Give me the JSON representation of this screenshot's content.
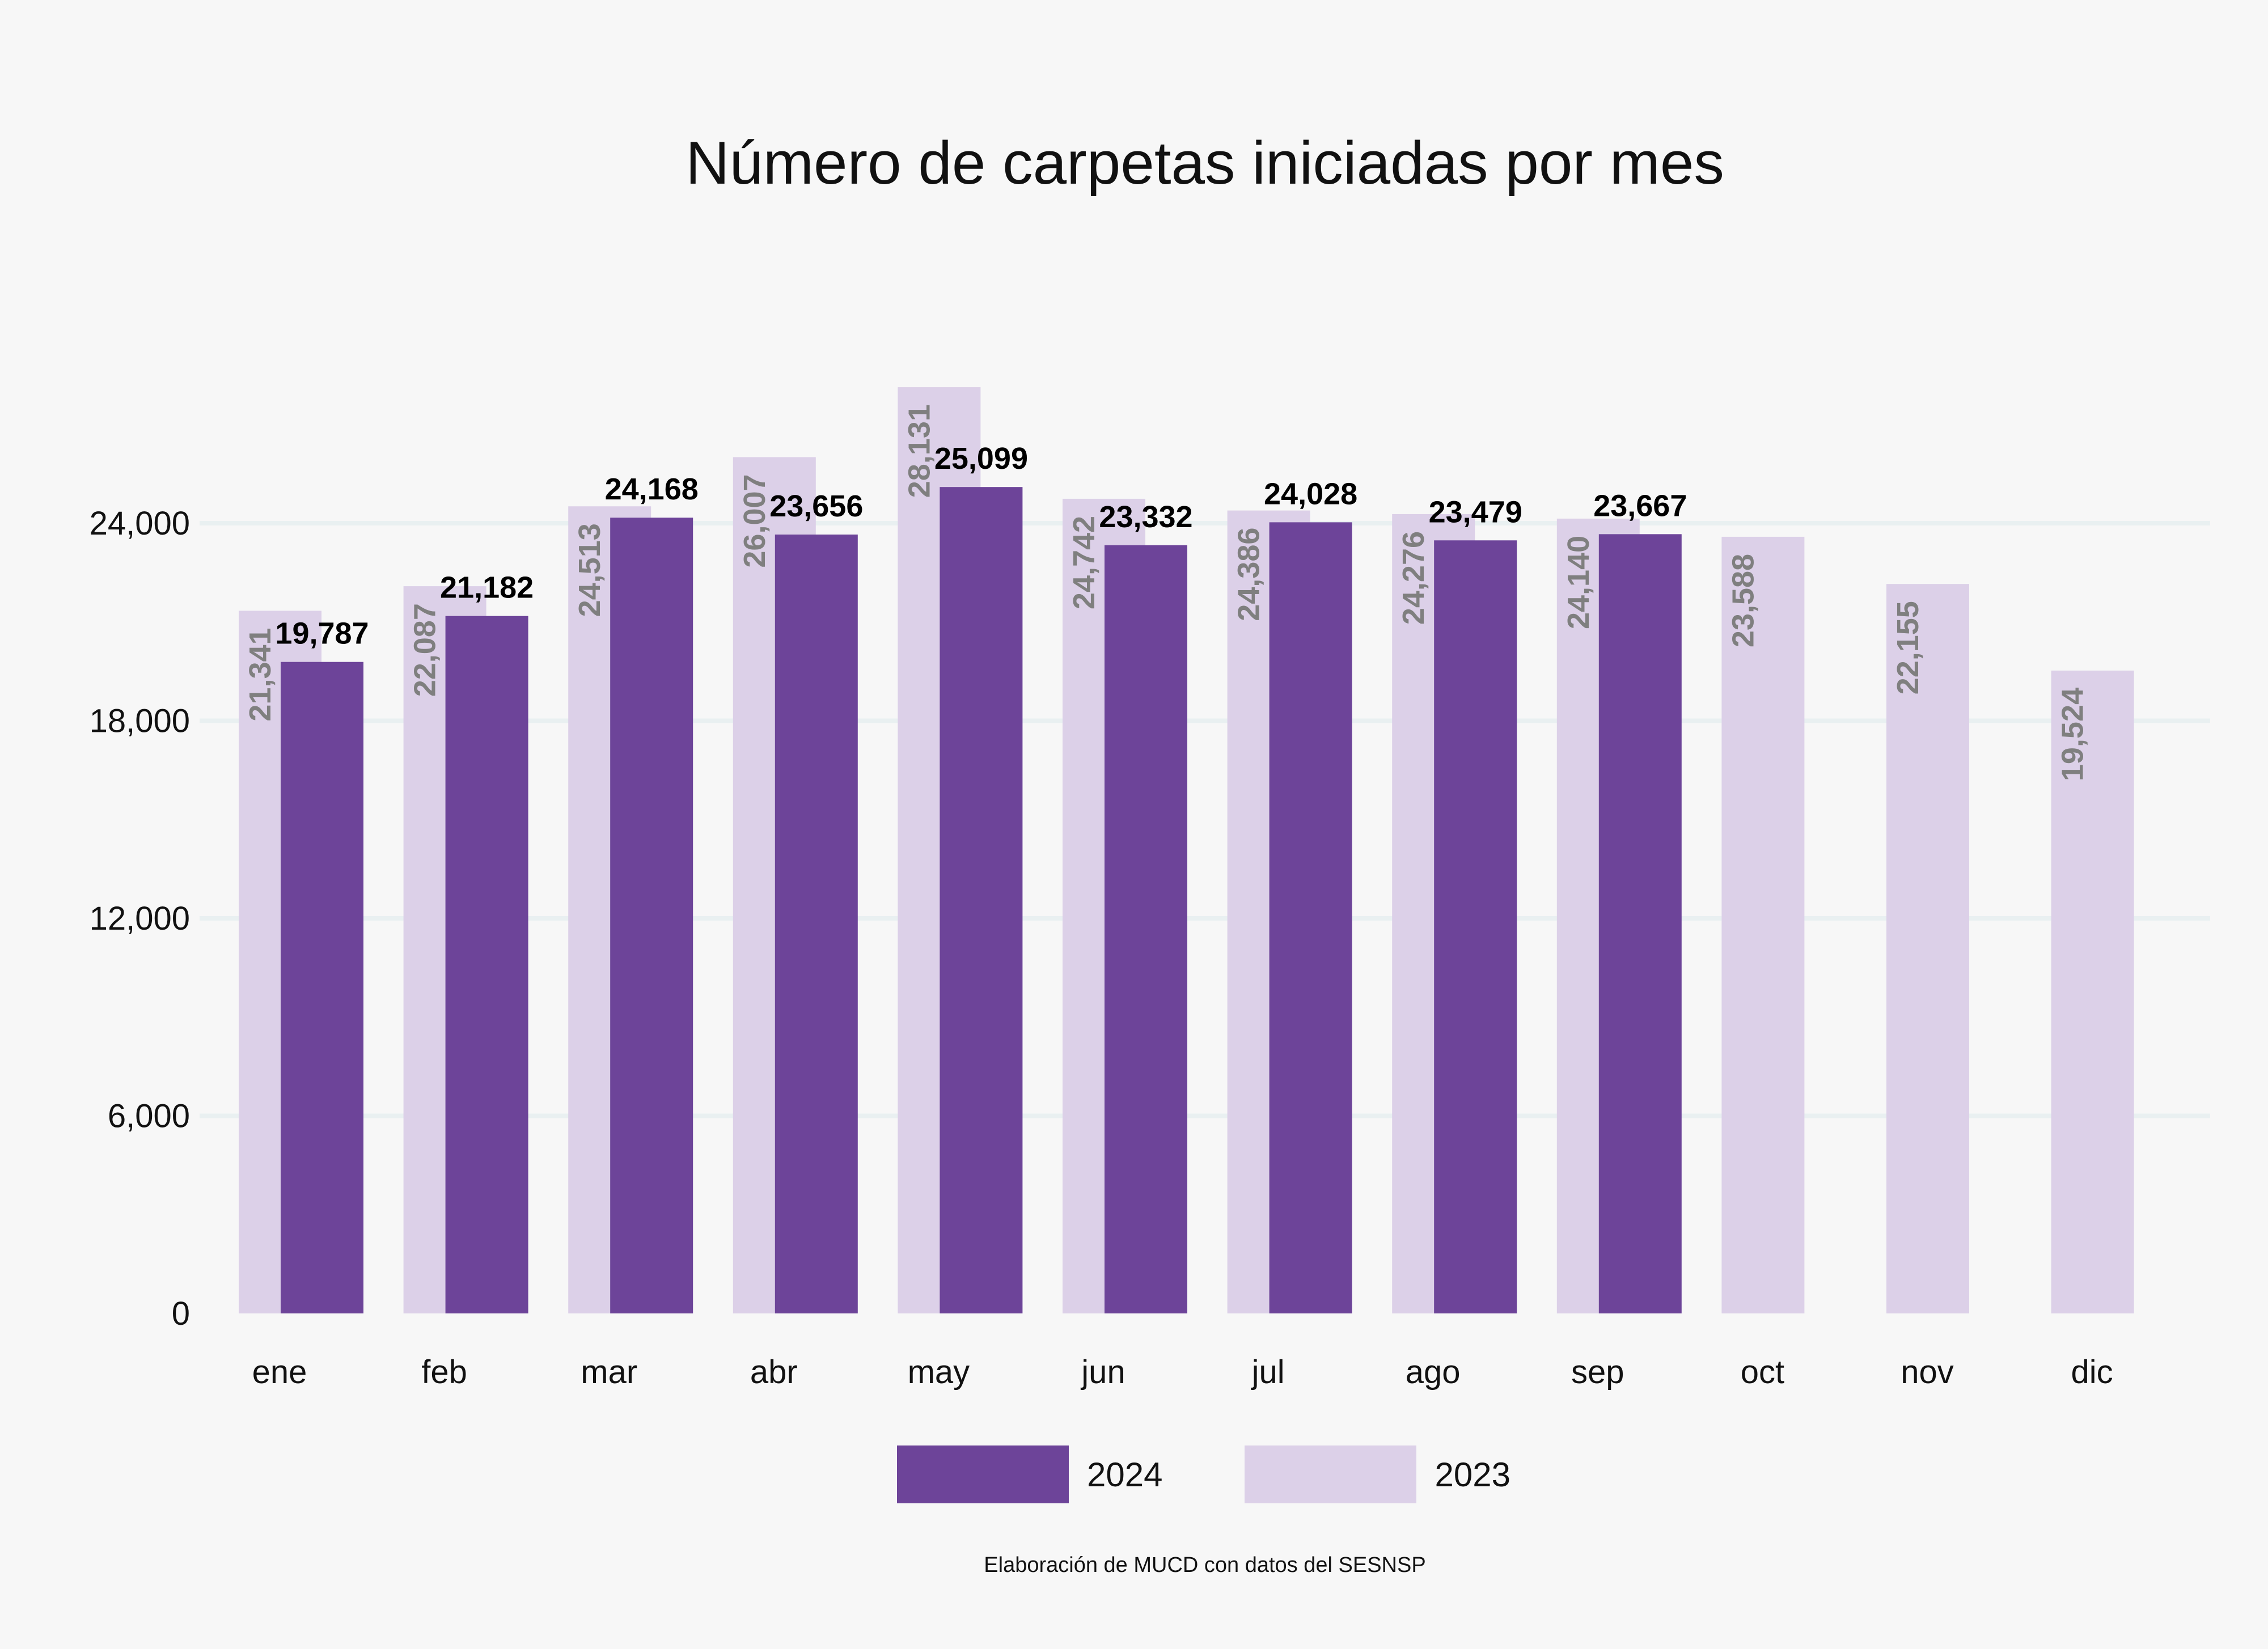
{
  "chart_data": {
    "type": "bar",
    "title": "Número de carpetas iniciadas por mes",
    "xlabel": "",
    "ylabel": "",
    "categories": [
      "ene",
      "feb",
      "mar",
      "abr",
      "may",
      "jun",
      "jul",
      "ago",
      "sep",
      "oct",
      "nov",
      "dic"
    ],
    "series": [
      {
        "name": "2023",
        "color": "#dcd0e8",
        "values": [
          21341,
          22087,
          24513,
          26007,
          28131,
          24742,
          24386,
          24276,
          24140,
          23588,
          22155,
          19524
        ],
        "labels": [
          "21,341",
          "22,087",
          "24,513",
          "26,007",
          "28,131",
          "24,742",
          "24,386",
          "24,276",
          "24,140",
          "23,588",
          "22,155",
          "19,524"
        ]
      },
      {
        "name": "2024",
        "color": "#6d4499",
        "values": [
          19787,
          21182,
          24168,
          23656,
          25099,
          23332,
          24028,
          23479,
          23667,
          null,
          null,
          null
        ],
        "labels": [
          "19,787",
          "21,182",
          "24,168",
          "23,656",
          "25,099",
          "23,332",
          "24,028",
          "23,479",
          "23,667",
          "",
          "",
          ""
        ]
      }
    ],
    "yticks": [
      0,
      6000,
      12000,
      18000,
      24000
    ],
    "ytick_labels": [
      "0",
      "6,000",
      "12,000",
      "18,000",
      "24,000"
    ],
    "ylim": [
      0,
      24000
    ],
    "grid": true,
    "legend_position": "bottom-center"
  },
  "legend": [
    {
      "label": "2024",
      "color": "#6d4499"
    },
    {
      "label": "2023",
      "color": "#dcd0e8"
    }
  ],
  "source": "Elaboración de MUCD con datos del SESNSP"
}
